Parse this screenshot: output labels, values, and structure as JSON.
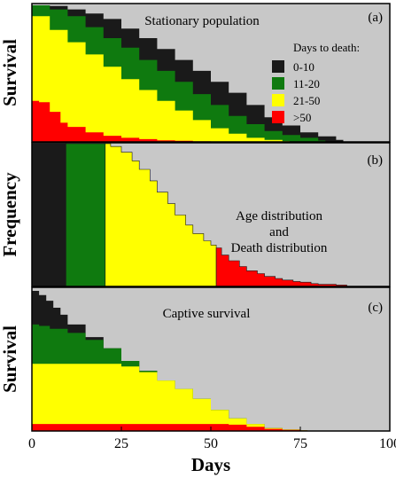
{
  "chart_data": [
    {
      "type": "area",
      "panel_label": "(a)",
      "title": "Stationary population",
      "ylabel": "Survival",
      "xlim": [
        0,
        100
      ],
      "legend": {
        "title": "Days to death:",
        "placement": "top-right",
        "entries": [
          {
            "label": "0-10",
            "color": "#1a1a1a"
          },
          {
            "label": "11-20",
            "color": "#0f7a0f"
          },
          {
            "label": "21-50",
            "color": "#ffff00"
          },
          {
            "label": ">50",
            "color": "#ff0000"
          }
        ]
      },
      "series": [
        {
          "color": "#1a1a1a",
          "x": [
            0,
            5,
            10,
            15,
            20,
            25,
            30,
            35,
            40,
            45,
            50,
            55,
            60,
            65,
            70,
            75,
            80,
            85,
            87,
            100
          ],
          "values": [
            1.0,
            0.995,
            0.97,
            0.94,
            0.9,
            0.83,
            0.76,
            0.68,
            0.6,
            0.52,
            0.44,
            0.36,
            0.27,
            0.18,
            0.12,
            0.07,
            0.04,
            0.015,
            0,
            0
          ]
        },
        {
          "color": "#0f7a0f",
          "x": [
            0,
            5,
            10,
            15,
            20,
            25,
            30,
            35,
            40,
            45,
            50,
            55,
            60,
            65,
            70,
            75,
            80,
            82,
            100
          ],
          "values": [
            1.0,
            0.97,
            0.92,
            0.84,
            0.76,
            0.69,
            0.6,
            0.52,
            0.44,
            0.35,
            0.27,
            0.19,
            0.13,
            0.08,
            0.05,
            0.03,
            0.01,
            0,
            0
          ]
        },
        {
          "color": "#ffff00",
          "x": [
            0,
            5,
            10,
            15,
            20,
            25,
            30,
            35,
            40,
            45,
            50,
            55,
            60,
            65,
            70,
            72,
            100
          ],
          "values": [
            0.92,
            0.82,
            0.73,
            0.64,
            0.55,
            0.46,
            0.38,
            0.3,
            0.23,
            0.16,
            0.1,
            0.06,
            0.03,
            0.015,
            0.005,
            0,
            0
          ]
        },
        {
          "color": "#ff0000",
          "x": [
            0,
            2,
            5,
            8,
            10,
            15,
            20,
            25,
            30,
            35,
            40,
            45,
            50,
            52,
            100
          ],
          "values": [
            0.3,
            0.29,
            0.22,
            0.14,
            0.11,
            0.07,
            0.045,
            0.03,
            0.02,
            0.012,
            0.008,
            0.004,
            0.002,
            0,
            0
          ]
        }
      ]
    },
    {
      "type": "area",
      "panel_label": "(b)",
      "title": "Age distribution\nand\nDeath distribution",
      "title_lines": [
        "Age distribution",
        "and",
        "Death distribution"
      ],
      "ylabel": "Frequency",
      "xlim": [
        0,
        100
      ],
      "series": [
        {
          "color": "#1a1a1a",
          "x": [
            0,
            9.5
          ],
          "values": [
            1.0,
            1.0
          ]
        },
        {
          "color": "#0f7a0f",
          "x": [
            9.5,
            20.5
          ],
          "values": [
            1.0,
            1.0
          ]
        },
        {
          "color": "#ffff00",
          "x": [
            20.5,
            22,
            25,
            28,
            30,
            33,
            35,
            38,
            40,
            43,
            45,
            48,
            50,
            51.5
          ],
          "values": [
            1.0,
            0.98,
            0.94,
            0.88,
            0.82,
            0.74,
            0.66,
            0.58,
            0.5,
            0.43,
            0.37,
            0.32,
            0.29,
            0.27
          ]
        },
        {
          "color": "#ff0000",
          "x": [
            51.5,
            53,
            55,
            58,
            60,
            63,
            65,
            68,
            70,
            73,
            75,
            78,
            80,
            85,
            88
          ],
          "values": [
            0.27,
            0.22,
            0.18,
            0.14,
            0.11,
            0.09,
            0.07,
            0.055,
            0.045,
            0.035,
            0.03,
            0.02,
            0.015,
            0.01,
            0.0
          ]
        }
      ]
    },
    {
      "type": "area",
      "panel_label": "(c)",
      "title": "Captive survival",
      "ylabel": "Survival",
      "xlim": [
        0,
        100
      ],
      "xticks": [
        "0",
        "25",
        "50",
        "75",
        "100"
      ],
      "xlabel": "Days",
      "series": [
        {
          "color": "#1a1a1a",
          "x": [
            0,
            2,
            4,
            6,
            8,
            10,
            15,
            20,
            25,
            30,
            35,
            40,
            45,
            50,
            55,
            60,
            65,
            70,
            75,
            77
          ],
          "values": [
            1.0,
            0.97,
            0.93,
            0.88,
            0.83,
            0.76,
            0.67,
            0.59,
            0.5,
            0.43,
            0.36,
            0.3,
            0.23,
            0.15,
            0.09,
            0.05,
            0.02,
            0.01,
            0.005,
            0
          ]
        },
        {
          "color": "#0f7a0f",
          "x": [
            0,
            2,
            5,
            10,
            15,
            20,
            25,
            30,
            35,
            40,
            45,
            50,
            55,
            60,
            65,
            70,
            75,
            77
          ],
          "values": [
            0.76,
            0.75,
            0.73,
            0.7,
            0.65,
            0.59,
            0.5,
            0.43,
            0.36,
            0.3,
            0.23,
            0.15,
            0.09,
            0.05,
            0.02,
            0.01,
            0.005,
            0
          ]
        },
        {
          "color": "#ffff00",
          "x": [
            0,
            5,
            10,
            15,
            20,
            25,
            30,
            35,
            40,
            45,
            50,
            55,
            60,
            65,
            70,
            75,
            77
          ],
          "values": [
            0.48,
            0.48,
            0.48,
            0.48,
            0.48,
            0.46,
            0.42,
            0.36,
            0.3,
            0.23,
            0.15,
            0.09,
            0.05,
            0.02,
            0.01,
            0.005,
            0
          ]
        },
        {
          "color": "#ff0000",
          "x": [
            0,
            10,
            20,
            30,
            40,
            50,
            55,
            60,
            65,
            70,
            75,
            77
          ],
          "values": [
            0.05,
            0.05,
            0.05,
            0.05,
            0.05,
            0.05,
            0.045,
            0.03,
            0.015,
            0.008,
            0.004,
            0
          ]
        }
      ]
    }
  ]
}
